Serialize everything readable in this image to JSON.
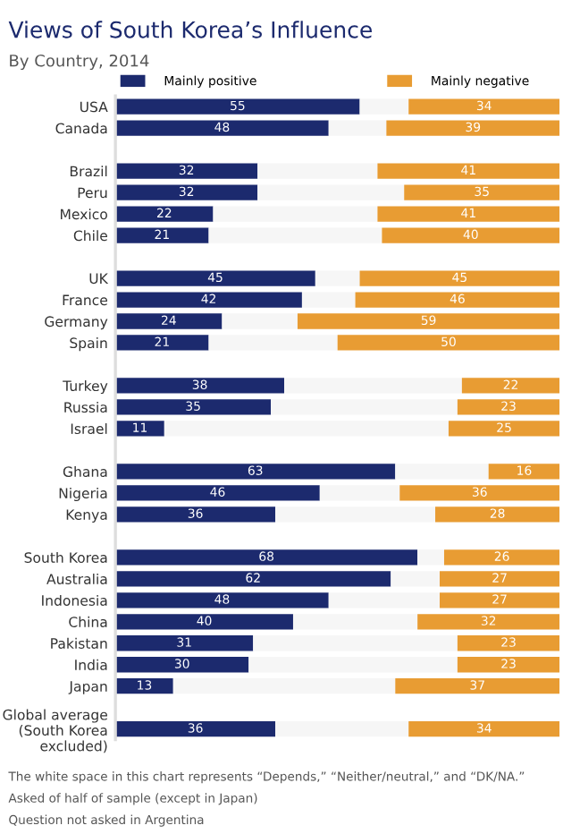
{
  "chart_data": {
    "type": "bar",
    "orientation": "horizontal",
    "stacked": true,
    "title": "Views of South Korea’s Influence",
    "subtitle": "By Country, 2014",
    "categories": [
      "USA",
      "Canada",
      null,
      "Brazil",
      "Peru",
      "Mexico",
      "Chile",
      null,
      "UK",
      "France",
      "Germany",
      "Spain",
      null,
      "Turkey",
      "Russia",
      "Israel",
      null,
      "Ghana",
      "Nigeria",
      "Kenya",
      null,
      "South Korea",
      "Australia",
      "Indonesia",
      "China",
      "Pakistan",
      "India",
      "Japan",
      null,
      "Global average\n(South Korea\nexcluded)"
    ],
    "series": [
      {
        "name": "Mainly positive",
        "color": "#1c2a6e",
        "values": [
          55,
          48,
          null,
          32,
          32,
          22,
          21,
          null,
          45,
          42,
          24,
          21,
          null,
          38,
          35,
          11,
          null,
          63,
          46,
          36,
          null,
          68,
          62,
          48,
          40,
          31,
          30,
          13,
          null,
          36
        ],
        "value_labels": [
          "55",
          "48",
          null,
          "32",
          "32",
          "22",
          "21",
          null,
          "45",
          "42",
          "24",
          "21",
          null,
          "38",
          "35",
          "11",
          null,
          "63",
          "46",
          "36",
          null,
          "68",
          "62",
          "48",
          "40",
          "31",
          "30",
          "13",
          null,
          "36"
        ]
      },
      {
        "color": "#f6f6f6",
        "values": [
          11,
          13,
          null,
          27,
          33,
          37,
          39,
          null,
          10,
          12,
          17,
          29,
          null,
          40,
          42,
          64,
          null,
          21,
          18,
          36,
          null,
          6,
          11,
          25,
          28,
          46,
          47,
          50,
          null,
          30
        ]
      },
      {
        "name": "Mainly negative",
        "color": "#e89c33",
        "values": [
          34,
          39,
          null,
          41,
          35,
          41,
          40,
          null,
          45,
          46,
          59,
          50,
          null,
          22,
          23,
          25,
          null,
          16,
          36,
          28,
          null,
          26,
          27,
          27,
          32,
          23,
          23,
          37,
          null,
          34
        ],
        "value_labels": [
          "34",
          "39",
          null,
          "41",
          "35",
          "41",
          "40",
          null,
          "45",
          "46",
          "59",
          "50",
          null,
          "22",
          "23",
          "25",
          null,
          "16",
          "36",
          "28",
          null,
          "26",
          "27",
          "27",
          "32",
          "23",
          "23",
          "37",
          null,
          "34"
        ]
      }
    ],
    "xlim": [
      0,
      100
    ],
    "tick_labels": "y",
    "legend": "top",
    "annotations": [
      "The white space in this chart represents “Depends,” “Neither/neutral,” and “DK/NA.”",
      "Asked of half of sample (except in Japan)",
      "Question not asked in Argentina"
    ]
  }
}
